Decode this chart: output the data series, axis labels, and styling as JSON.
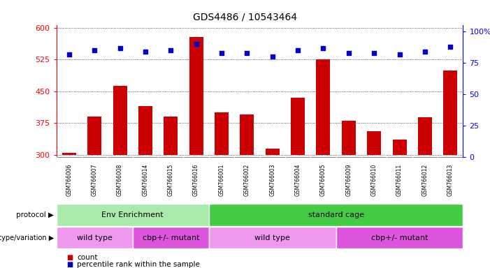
{
  "title": "GDS4486 / 10543464",
  "samples": [
    "GSM766006",
    "GSM766007",
    "GSM766008",
    "GSM766014",
    "GSM766015",
    "GSM766016",
    "GSM766001",
    "GSM766002",
    "GSM766003",
    "GSM766004",
    "GSM766005",
    "GSM766009",
    "GSM766010",
    "GSM766011",
    "GSM766012",
    "GSM766013"
  ],
  "counts": [
    305,
    390,
    462,
    415,
    390,
    578,
    400,
    395,
    315,
    435,
    525,
    380,
    355,
    335,
    388,
    498
  ],
  "percentiles": [
    82,
    85,
    87,
    84,
    85,
    90,
    83,
    83,
    80,
    85,
    87,
    83,
    83,
    82,
    84,
    88
  ],
  "ylim_left": [
    295,
    605
  ],
  "ylim_right": [
    0,
    105
  ],
  "yticks_left": [
    300,
    375,
    450,
    525,
    600
  ],
  "yticks_right": [
    0,
    25,
    50,
    75,
    100
  ],
  "bar_color": "#cc0000",
  "dot_color": "#0000cc",
  "protocol_groups": [
    {
      "label": "Env Enrichment",
      "start": 0,
      "end": 6,
      "color": "#aaeaaa"
    },
    {
      "label": "standard cage",
      "start": 6,
      "end": 16,
      "color": "#44cc44"
    }
  ],
  "genotype_groups": [
    {
      "label": "wild type",
      "start": 0,
      "end": 3,
      "color": "#ee99ee"
    },
    {
      "label": "cbp+/- mutant",
      "start": 3,
      "end": 6,
      "color": "#dd55dd"
    },
    {
      "label": "wild type",
      "start": 6,
      "end": 11,
      "color": "#ee99ee"
    },
    {
      "label": "cbp+/- mutant",
      "start": 11,
      "end": 16,
      "color": "#dd55dd"
    }
  ],
  "legend_count_color": "#cc0000",
  "legend_dot_color": "#0000cc",
  "background_color": "#ffffff",
  "plot_bg_color": "#ffffff",
  "gridline_color": "#333333",
  "label_protocol": "protocol",
  "label_genotype": "genotype/variation",
  "bar_bottom": 300,
  "sample_label_color": "#cccccc"
}
